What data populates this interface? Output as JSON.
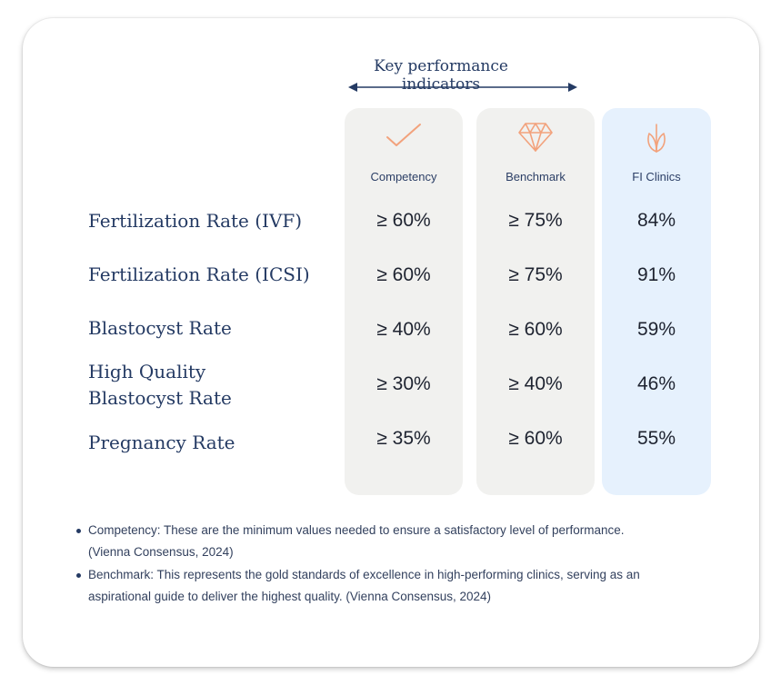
{
  "header": {
    "title": "Key performance indicators"
  },
  "columns": [
    {
      "label": "Competency",
      "icon": "checkmark-icon"
    },
    {
      "label": "Benchmark",
      "icon": "diamond-icon"
    },
    {
      "label": "FI Clinics",
      "icon": "sprout-icon"
    }
  ],
  "rows": [
    {
      "label": "Fertilization Rate (IVF)",
      "competency": "≥ 60%",
      "benchmark": "≥ 75%",
      "fi": "84%"
    },
    {
      "label": "Fertilization Rate (ICSI)",
      "competency": "≥ 60%",
      "benchmark": "≥ 75%",
      "fi": "91%"
    },
    {
      "label": "Blastocyst Rate",
      "competency": "≥ 40%",
      "benchmark": "≥ 60%",
      "fi": "59%"
    },
    {
      "label_line1": "High Quality",
      "label_line2": "Blastocyst Rate",
      "competency": "≥ 30%",
      "benchmark": "≥ 40%",
      "fi": "46%"
    },
    {
      "label": "Pregnancy Rate",
      "competency": "≥ 35%",
      "benchmark": "≥ 60%",
      "fi": "55%"
    }
  ],
  "notes": [
    {
      "line1": "Competency: These are the minimum values needed to ensure a satisfactory level of performance.",
      "line2": "(Vienna Consensus, 2024)"
    },
    {
      "line1": "Benchmark: This represents the gold standards of excellence in high-performing clinics, serving as an",
      "line2": "aspirational guide to deliver the highest quality. (Vienna Consensus, 2024)"
    }
  ],
  "colors": {
    "text_navy": "#243a63",
    "icon_orange": "#f2a27c",
    "gray_col": "#f1f1ef",
    "blue_col": "#e6f1fd"
  }
}
